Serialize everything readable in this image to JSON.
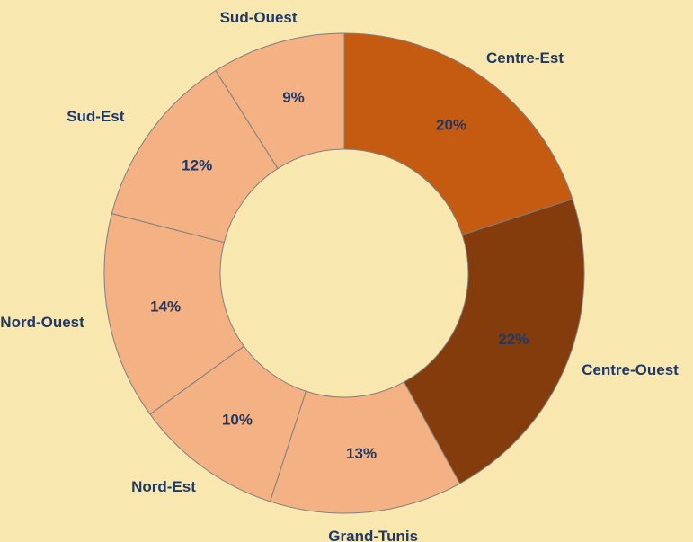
{
  "chart_data": {
    "type": "donut",
    "categories": [
      "Centre-Est",
      "Centre-Ouest",
      "Grand-Tunis",
      "Nord-Est",
      "Nord-Ouest",
      "Sud-Est",
      "Sud-Ouest"
    ],
    "values": [
      20,
      22,
      13,
      10,
      14,
      12,
      9
    ],
    "value_labels": [
      "20%",
      "22%",
      "13%",
      "10%",
      "14%",
      "12%",
      "9%"
    ],
    "colors": [
      "#c55a11",
      "#843c0c",
      "#f4b183",
      "#f4b183",
      "#f4b183",
      "#f4b183",
      "#f4b183"
    ]
  }
}
